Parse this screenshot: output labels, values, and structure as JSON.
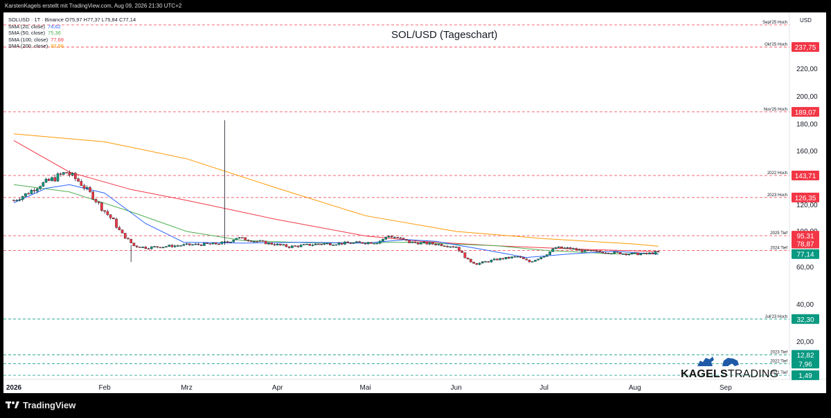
{
  "header": {
    "attribution": "KarstenKagels erstellt mit TradingView.com, Aug 09, 2026 21:30 UTC+2"
  },
  "legend": {
    "symbol_line": "SOLUSD · 1T · Binance  O75,97  H77,37  L75,84  C77,14",
    "indicators": [
      {
        "label": "SMA (20, close)",
        "value": "74,62",
        "color": "#2962ff"
      },
      {
        "label": "SMA (50, close)",
        "value": "75,36",
        "color": "#4caf50"
      },
      {
        "label": "SMA (100, close)",
        "value": "77,69",
        "color": "#f23645"
      },
      {
        "label": "SMA (200, close)",
        "value": "83,56",
        "color": "#ff9800"
      }
    ]
  },
  "chart_data": {
    "type": "candlestick",
    "title": "SOL/USD (Tageschart)",
    "currency_label": "USD",
    "yaxis_ticks": [
      {
        "value": 20,
        "label": "20,00"
      },
      {
        "value": 40,
        "label": "40,00"
      },
      {
        "value": 60,
        "label": "60,00"
      },
      {
        "value": 100,
        "label": "100,00"
      },
      {
        "value": 120,
        "label": "120,00"
      },
      {
        "value": 160,
        "label": "160,00"
      },
      {
        "value": 180,
        "label": "180,00"
      },
      {
        "value": 200,
        "label": "200,00"
      },
      {
        "value": 220,
        "label": "220,00"
      }
    ],
    "xaxis_ticks": [
      {
        "date": "2026-01-01",
        "label": "2026",
        "bold": true
      },
      {
        "date": "2026-02-01",
        "label": "Feb"
      },
      {
        "date": "2026-03-01",
        "label": "Mrz"
      },
      {
        "date": "2026-04-01",
        "label": "Apr"
      },
      {
        "date": "2026-05-01",
        "label": "Mai"
      },
      {
        "date": "2026-06-01",
        "label": "Jun"
      },
      {
        "date": "2026-07-01",
        "label": "Jul"
      },
      {
        "date": "2026-08-01",
        "label": "Aug"
      },
      {
        "date": "2026-09-01",
        "label": "Sep"
      }
    ],
    "levels": [
      {
        "name": "Sept'25 Hoch",
        "price": 250.0,
        "color": "#f23645"
      },
      {
        "name": "Okt'25 Hoch",
        "price": 237.75,
        "label": "237,75",
        "color": "#f23645"
      },
      {
        "name": "Nov'25 Hoch",
        "price": 189.07,
        "label": "189,07",
        "color": "#f23645"
      },
      {
        "name": "2022 Hoch",
        "price": 143.71,
        "label": "143,71",
        "color": "#f23645"
      },
      {
        "name": "2023 Hoch",
        "price": 126.35,
        "label": "126,35",
        "color": "#f23645"
      },
      {
        "name": "2025 Tief",
        "price": 95.31,
        "label": "95,31",
        "color": "#f23645"
      },
      {
        "name": "2024 Tief",
        "price": 78.87,
        "color": "#f23645"
      },
      {
        "name": "Juli'23 Hoch",
        "price": 32.3,
        "label": "32,30",
        "color": "#089981"
      },
      {
        "name": "2023 Tief",
        "price": 12.82,
        "label": "12,82",
        "color": "#089981"
      },
      {
        "name": "2022 Tief",
        "price": 7.96,
        "label": "7,96",
        "color": "#089981"
      },
      {
        "name": "2021 Tief",
        "price": 1.49,
        "label": "1,49",
        "color": "#089981"
      }
    ],
    "price_tags": [
      {
        "price": 78.87,
        "label": "78,87",
        "color": "#f23645"
      },
      {
        "price": 77.14,
        "label": "77,14",
        "color": "#089981"
      }
    ],
    "close_keypoints": [
      {
        "date": "2026-01-01",
        "value": 124
      },
      {
        "date": "2026-01-05",
        "value": 129
      },
      {
        "date": "2026-01-10",
        "value": 137
      },
      {
        "date": "2026-01-15",
        "value": 142
      },
      {
        "date": "2026-01-19",
        "value": 146
      },
      {
        "date": "2026-01-23",
        "value": 140
      },
      {
        "date": "2026-01-27",
        "value": 130
      },
      {
        "date": "2026-01-31",
        "value": 118
      },
      {
        "date": "2026-02-04",
        "value": 108
      },
      {
        "date": "2026-02-07",
        "value": 97
      },
      {
        "date": "2026-02-11",
        "value": 84
      },
      {
        "date": "2026-02-15",
        "value": 82
      },
      {
        "date": "2026-02-20",
        "value": 83
      },
      {
        "date": "2026-03-01",
        "value": 85
      },
      {
        "date": "2026-03-10",
        "value": 86
      },
      {
        "date": "2026-03-15",
        "value": 88
      },
      {
        "date": "2026-03-18",
        "value": 93
      },
      {
        "date": "2026-03-25",
        "value": 89
      },
      {
        "date": "2026-04-05",
        "value": 83
      },
      {
        "date": "2026-04-15",
        "value": 86
      },
      {
        "date": "2026-04-25",
        "value": 87
      },
      {
        "date": "2026-05-05",
        "value": 88
      },
      {
        "date": "2026-05-09",
        "value": 95
      },
      {
        "date": "2026-05-12",
        "value": 93
      },
      {
        "date": "2026-05-16",
        "value": 88
      },
      {
        "date": "2026-05-25",
        "value": 86
      },
      {
        "date": "2026-06-01",
        "value": 83
      },
      {
        "date": "2026-06-05",
        "value": 68
      },
      {
        "date": "2026-06-08",
        "value": 64
      },
      {
        "date": "2026-06-15",
        "value": 69
      },
      {
        "date": "2026-06-22",
        "value": 72
      },
      {
        "date": "2026-06-26",
        "value": 66
      },
      {
        "date": "2026-07-01",
        "value": 73
      },
      {
        "date": "2026-07-05",
        "value": 82
      },
      {
        "date": "2026-07-10",
        "value": 81
      },
      {
        "date": "2026-07-15",
        "value": 78
      },
      {
        "date": "2026-07-22",
        "value": 77
      },
      {
        "date": "2026-07-30",
        "value": 75
      },
      {
        "date": "2026-08-05",
        "value": 75
      },
      {
        "date": "2026-08-09",
        "value": 77.14
      }
    ],
    "spikes": [
      {
        "date": "2026-03-14",
        "high": 183,
        "low": 85
      },
      {
        "date": "2026-02-10",
        "high": 85,
        "low": 66
      }
    ],
    "moving_averages": [
      {
        "name": "SMA (200, close)",
        "color": "#ff9800",
        "points": [
          [
            "2026-01-01",
            173
          ],
          [
            "2026-02-01",
            167
          ],
          [
            "2026-03-01",
            155
          ],
          [
            "2026-04-01",
            134
          ],
          [
            "2026-05-01",
            112
          ],
          [
            "2026-06-01",
            100
          ],
          [
            "2026-07-01",
            92
          ],
          [
            "2026-08-01",
            86
          ],
          [
            "2026-08-09",
            83.56
          ]
        ]
      },
      {
        "name": "SMA (100, close)",
        "color": "#f23645",
        "points": [
          [
            "2026-01-01",
            168
          ],
          [
            "2026-01-20",
            146
          ],
          [
            "2026-02-10",
            133
          ],
          [
            "2026-03-01",
            124
          ],
          [
            "2026-04-01",
            109
          ],
          [
            "2026-05-01",
            95
          ],
          [
            "2026-05-20",
            89
          ],
          [
            "2026-06-15",
            84
          ],
          [
            "2026-07-15",
            80
          ],
          [
            "2026-08-09",
            77.69
          ]
        ]
      },
      {
        "name": "SMA (50, close)",
        "color": "#4caf50",
        "points": [
          [
            "2026-01-01",
            137
          ],
          [
            "2026-01-20",
            131
          ],
          [
            "2026-02-10",
            115
          ],
          [
            "2026-03-01",
            100
          ],
          [
            "2026-03-20",
            90
          ],
          [
            "2026-04-15",
            87
          ],
          [
            "2026-05-15",
            88
          ],
          [
            "2026-06-15",
            84
          ],
          [
            "2026-07-01",
            79
          ],
          [
            "2026-07-25",
            75
          ],
          [
            "2026-08-09",
            75.36
          ]
        ]
      },
      {
        "name": "SMA (20, close)",
        "color": "#2962ff",
        "points": [
          [
            "2026-01-01",
            122
          ],
          [
            "2026-01-12",
            134
          ],
          [
            "2026-01-20",
            137
          ],
          [
            "2026-02-01",
            130
          ],
          [
            "2026-02-15",
            106
          ],
          [
            "2026-02-28",
            88
          ],
          [
            "2026-03-20",
            87
          ],
          [
            "2026-04-10",
            88
          ],
          [
            "2026-05-01",
            87
          ],
          [
            "2026-05-15",
            91
          ],
          [
            "2026-05-25",
            89
          ],
          [
            "2026-06-10",
            80
          ],
          [
            "2026-06-25",
            71
          ],
          [
            "2026-07-10",
            75
          ],
          [
            "2026-07-25",
            78
          ],
          [
            "2026-08-09",
            74.62
          ]
        ]
      }
    ],
    "watermark": {
      "bold": "KAGELS",
      "light": "TRADING"
    }
  },
  "footer": {
    "brand": "TradingView"
  }
}
